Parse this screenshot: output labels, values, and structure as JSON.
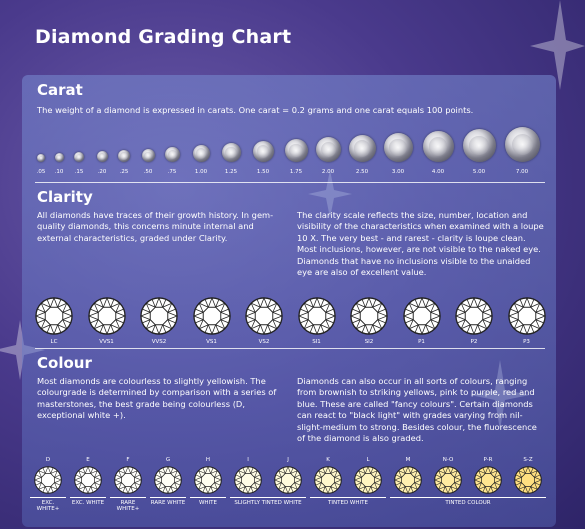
{
  "title": "Diamond Grading Chart",
  "carat": {
    "heading": "Carat",
    "text": "The weight of a diamond is expressed in carats. One carat = 0.2 grams and one carat equals 100 points.",
    "sizes": [
      ".05",
      ".10",
      ".15",
      ".20",
      ".25",
      ".50",
      ".75",
      "1.00",
      "1.25",
      "1.50",
      "1.75",
      "2.00",
      "2.50",
      "3.00",
      "4.00",
      "5.00",
      "7.00"
    ]
  },
  "clarity": {
    "heading": "Clarity",
    "text_left": "All diamonds have traces of their growth history. In gem-quality diamonds, this concerns minute internal and external characteristics, graded under Clarity.",
    "text_right": "The clarity scale reflects the size, number, location and visibility of the characteristics when examined with a loupe 10 X. The very best - and rarest - clarity is loupe clean. Most inclusions, however, are not visible to the naked eye. Diamonds that have no inclusions visible to the unaided eye are also of excellent value.",
    "grades": [
      "LC",
      "VVS1",
      "VVS2",
      "VS1",
      "VS2",
      "SI1",
      "SI2",
      "P1",
      "P2",
      "P3"
    ]
  },
  "colour": {
    "heading": "Colour",
    "text_left": "Most diamonds are colourless to slightly yellowish. The colourgrade is determined by comparison with a series of masterstones, the best grade being colourless (D, exceptional white +).",
    "text_right": "Diamonds can also occur in all sorts of colours, ranging from brownish to striking yellows, pink to purple, red and blue. These are called \"fancy colours\". Certain diamonds can react to \"black light\" with grades varying from nil-slight-medium to strong. Besides colour, the fluorescence of the diamond is also graded.",
    "grades": [
      "D",
      "E",
      "F",
      "G",
      "H",
      "I",
      "J",
      "K",
      "L",
      "M",
      "N-O",
      "P-R",
      "S-Z"
    ],
    "groups": [
      "EXC. WHITE+",
      "EXC. WHITE",
      "RARE WHITE+",
      "RARE WHITE",
      "WHITE",
      "SLIGHTLY TINTED WHITE",
      "TINTED WHITE",
      "TINTED COLOUR"
    ],
    "tints": [
      "#ffffff",
      "#ffffff",
      "#fffffc",
      "#fffff5",
      "#fffff0",
      "#fffde6",
      "#fffbdc",
      "#fff8cc",
      "#fff5c0",
      "#fff0b0",
      "#ffeba0",
      "#ffe590",
      "#ffdf80"
    ]
  }
}
